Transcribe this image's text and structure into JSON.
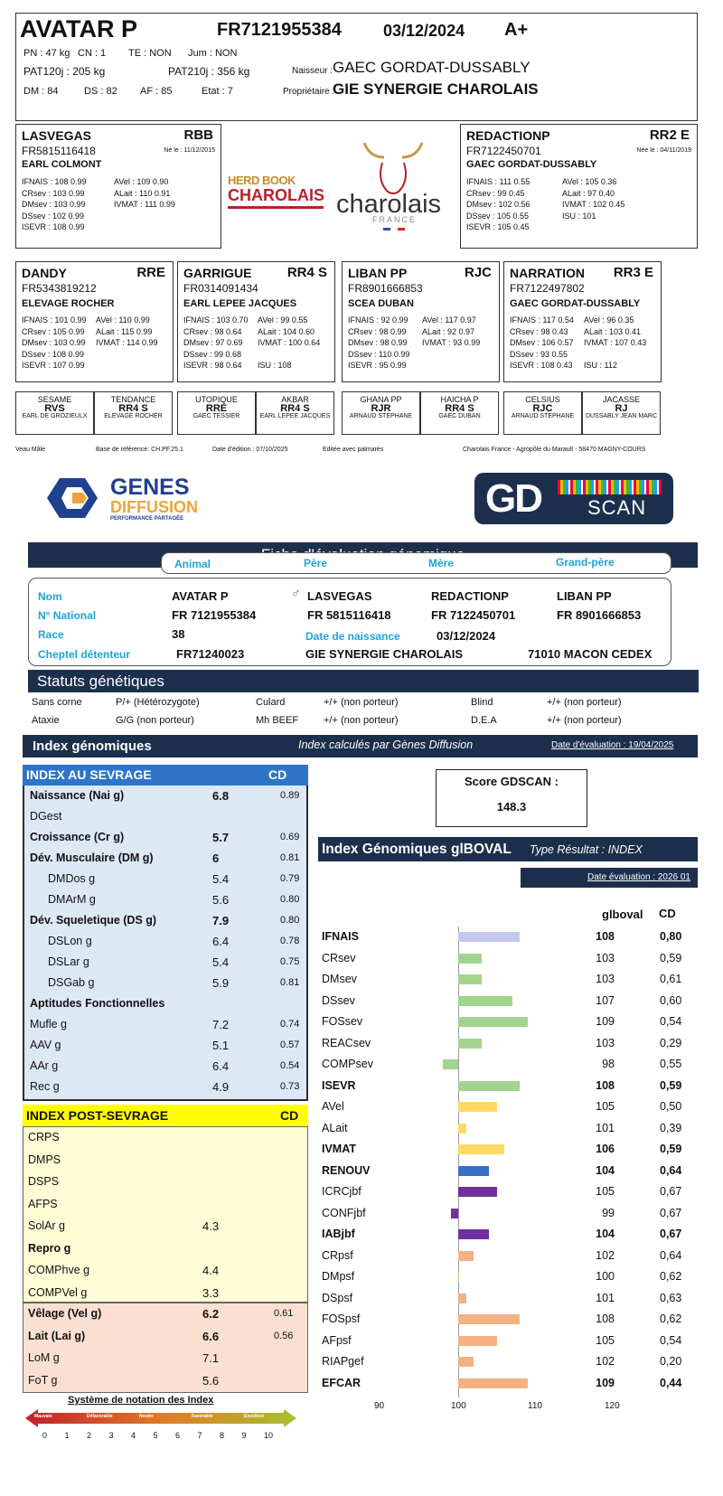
{
  "header": {
    "name": "AVATAR P",
    "number": "FR7121955384",
    "date": "03/12/2024",
    "grade": "A+",
    "pn": "PN : 47 kg",
    "cn": "CN : 1",
    "te": "TE : NON",
    "jum": "Jum : NON",
    "pat120": "PAT120j : 205 kg",
    "pat210": "PAT210j : 356 kg",
    "naisseur_label": "Naisseur :",
    "naisseur": "GAEC GORDAT-DUSSABLY",
    "dm": "DM : 84",
    "ds": "DS : 82",
    "af": "AF : 85",
    "etat": "Etat : 7",
    "proprio_label": "Propriétaire :",
    "proprio": "GIE SYNERGIE CHAROLAIS"
  },
  "sire": {
    "name": "LASVEGAS",
    "code": "RBB",
    "number": "FR5815116418",
    "born": "Né le : 11/12/2015",
    "owner": "EARL COLMONT",
    "left": [
      "IFNAIS : 108 0.99",
      "CRsev : 103 0.99",
      "DMsev : 103 0.99",
      "DSsev : 102 0.99",
      "ISEVR : 108 0.99"
    ],
    "right": [
      "AVel : 109 0.90",
      "ALait : 110 0.91",
      "IVMAT : 111 0.99"
    ]
  },
  "dam": {
    "name": "REDACTIONP",
    "code": "RR2 E",
    "number": "FR7122450701",
    "born": "Née le : 04/11/2019",
    "owner": "GAEC GORDAT-DUSSABLY",
    "left": [
      "IFNAIS : 111 0.55",
      "CRsev : 99 0.45",
      "DMsev : 102 0.56",
      "DSsev : 105 0.55",
      "ISEVR : 105 0.45"
    ],
    "right": [
      "AVel : 105 0.36",
      "ALait : 97 0.40",
      "IVMAT : 102 0.45",
      "",
      "ISU : 101"
    ]
  },
  "logos": {
    "herdbook1": "HERD BOOK",
    "herdbook2": "CHAROLAIS",
    "charolais": "charolais",
    "france": "FRANCE"
  },
  "gparents": [
    {
      "name": "DANDY",
      "code": "RRE",
      "number": "FR5343819212",
      "owner": "ELEVAGE ROCHER",
      "left": [
        "IFNAIS : 101 0.99",
        "CRsev : 105 0.99",
        "DMsev : 103 0.99",
        "DSsev : 108 0.99",
        "ISEVR : 107 0.99"
      ],
      "right": [
        "AVel : 110 0.99",
        "ALait : 115 0.99",
        "IVMAT : 114 0.99",
        "",
        ""
      ]
    },
    {
      "name": "GARRIGUE",
      "code": "RR4 S",
      "number": "FR0314091434",
      "owner": "EARL LEPEE JACQUES",
      "left": [
        "IFNAIS : 103 0.70",
        "CRsev : 98 0.64",
        "DMsev : 97 0.69",
        "DSsev : 99 0.68",
        "ISEVR : 98 0.64"
      ],
      "right": [
        "AVel : 99 0.55",
        "ALait : 104 0.60",
        "IVMAT : 100 0.64",
        "",
        "ISU : 108"
      ]
    },
    {
      "name": "LIBAN PP",
      "code": "RJC",
      "number": "FR8901666853",
      "owner": "SCEA DUBAN",
      "left": [
        "IFNAIS : 92 0.99",
        "CRsev : 98 0.99",
        "DMsev : 98 0.99",
        "DSsev : 110 0.99",
        "ISEVR : 95 0.99"
      ],
      "right": [
        "AVel : 117 0.97",
        "ALait : 92 0.97",
        "IVMAT : 93 0.99",
        "",
        ""
      ]
    },
    {
      "name": "NARRATION",
      "code": "RR3 E",
      "number": "FR7122497802",
      "owner": "GAEC GORDAT-DUSSABLY",
      "left": [
        "IFNAIS : 117 0.54",
        "CRsev : 98 0.43",
        "DMsev : 106 0.57",
        "DSsev : 93 0.55",
        "ISEVR : 108 0.43"
      ],
      "right": [
        "AVel : 96 0.35",
        "ALait : 103 0.41",
        "IVMAT : 107 0.43",
        "",
        "ISU : 112"
      ]
    }
  ],
  "ggparents": [
    {
      "name": "SESAME",
      "code": "RVS",
      "owner": "EARL DE GROZIEULX"
    },
    {
      "name": "TENDANCE",
      "code": "RR4 S",
      "owner": "ELEVAGE ROCHER"
    },
    {
      "name": "UTOPIQUE",
      "code": "RRE",
      "owner": "GAEC TESSIER"
    },
    {
      "name": "AKBAR",
      "code": "RR4 S",
      "owner": "EARL LEPEE JACQUES"
    },
    {
      "name": "GHANA PP",
      "code": "RJR",
      "owner": "ARNAUD STEPHANE"
    },
    {
      "name": "HAICHA P",
      "code": "RR4 S",
      "owner": "GAEC DUBAN"
    },
    {
      "name": "CELSIUS",
      "code": "RJC",
      "owner": "ARNAUD STEPHANE"
    },
    {
      "name": "JACASSE",
      "code": "RJ",
      "owner": "DUSSABLY JEAN MARC"
    }
  ],
  "footer": {
    "type": "Veau Mâle",
    "base": "Base de référence: CH.PF.25.1",
    "edition": "Date d'édition : 07/10/2025",
    "palmares": "Editée avec palmarès",
    "org": "Charolais France - Agropôle du Marault - 58470 MAGNY-COURS"
  },
  "gd": {
    "genes": "GENES",
    "diffusion": "DIFFUSION",
    "tagline": "PERFORMANCE PARTAGÉE",
    "scan_gd": "GD",
    "scan_word": "SCAN",
    "fiche_title": "Fiche d'évaluation génomique",
    "cols": [
      "Animal",
      "Père",
      "Mère",
      "Grand-père"
    ],
    "lbl_nom": "Nom",
    "lbl_nat": "N° National",
    "lbl_race": "Race",
    "lbl_cheptel": "Cheptel détenteur",
    "lbl_naiss": "Date de naissance",
    "animal_nom": "AVATAR P",
    "pere_nom": "LASVEGAS",
    "mere_nom": "REDACTIONP",
    "gp_nom": "LIBAN PP",
    "animal_nat": "FR 7121955384",
    "pere_nat": "FR 5815116418",
    "mere_nat": "FR 7122450701",
    "gp_nat": "FR 8901666853",
    "race": "38",
    "naissance": "03/12/2024",
    "cheptel": "FR71240023",
    "cheptel_nom": "GIE SYNERGIE CHAROLAIS",
    "cheptel_ville": "71010 MACON CEDEX"
  },
  "statuts": {
    "title": "Statuts génétiques",
    "rows": [
      [
        "Sans corne",
        "P/+ (Hétérozygote)",
        "Culard",
        "+/+ (non porteur)",
        "Blind",
        "+/+ (non porteur)"
      ],
      [
        "Ataxie",
        "G/G (non porteur)",
        "Mh BEEF",
        "+/+ (non porteur)",
        "D.E.A",
        "+/+ (non porteur)"
      ]
    ]
  },
  "index": {
    "title": "Index génomiques",
    "calc": "Index calculés par Gènes Diffusion",
    "date_eval": "Date d'évaluation : 19/04/2025",
    "sevrage_title": "INDEX AU SEVRAGE",
    "cd_label": "CD",
    "sevrage": [
      {
        "label": "Naissance (Nai g)",
        "value": "6.8",
        "cd": "0.89",
        "bold": true,
        "indent": 0
      },
      {
        "label": "DGest",
        "value": "",
        "cd": "",
        "bold": false,
        "indent": 0
      },
      {
        "label": "Croissance (Cr g)",
        "value": "5.7",
        "cd": "0.69",
        "bold": true,
        "indent": 0
      },
      {
        "label": "Dév. Musculaire (DM g)",
        "value": "6",
        "cd": "0.81",
        "bold": true,
        "indent": 0
      },
      {
        "label": "DMDos g",
        "value": "5.4",
        "cd": "0.79",
        "bold": false,
        "indent": 1
      },
      {
        "label": "DMArM g",
        "value": "5.6",
        "cd": "0.80",
        "bold": false,
        "indent": 1
      },
      {
        "label": "Dév. Squeletique (DS g)",
        "value": "7.9",
        "cd": "0.80",
        "bold": true,
        "indent": 0
      },
      {
        "label": "DSLon g",
        "value": "6.4",
        "cd": "0.78",
        "bold": false,
        "indent": 1
      },
      {
        "label": "DSLar g",
        "value": "5.4",
        "cd": "0.75",
        "bold": false,
        "indent": 1
      },
      {
        "label": "DSGab g",
        "value": "5.9",
        "cd": "0.81",
        "bold": false,
        "indent": 1
      },
      {
        "label": "Aptitudes Fonctionnelles",
        "value": "",
        "cd": "",
        "bold": true,
        "indent": 0
      },
      {
        "label": "Mufle g",
        "value": "7.2",
        "cd": "0.74",
        "bold": false,
        "indent": 0
      },
      {
        "label": "AAV g",
        "value": "5.1",
        "cd": "0.57",
        "bold": false,
        "indent": 0
      },
      {
        "label": "AAr g",
        "value": "6.4",
        "cd": "0.54",
        "bold": false,
        "indent": 0
      },
      {
        "label": "Rec g",
        "value": "4.9",
        "cd": "0.73",
        "bold": false,
        "indent": 0
      }
    ],
    "post_title": "INDEX POST-SEVRAGE",
    "post": [
      {
        "label": "CRPS",
        "value": "",
        "bold": false
      },
      {
        "label": "DMPS",
        "value": "",
        "bold": false
      },
      {
        "label": "DSPS",
        "value": "",
        "bold": false
      },
      {
        "label": "AFPS",
        "value": "",
        "bold": false
      },
      {
        "label": "SolAr g",
        "value": "4.3",
        "bold": false
      },
      {
        "label": "Repro g",
        "value": "",
        "bold": true
      },
      {
        "label": "COMPhve g",
        "value": "4.4",
        "bold": false
      },
      {
        "label": "COMPVel g",
        "value": "3.3",
        "bold": false
      }
    ],
    "velage": [
      {
        "label": "Vêlage (Vel g)",
        "value": "6.2",
        "cd": "0.61",
        "bold": true
      },
      {
        "label": "Lait (Lai g)",
        "value": "6.6",
        "cd": "0.56",
        "bold": true
      },
      {
        "label": "LoM g",
        "value": "7.1",
        "cd": "",
        "bold": false
      },
      {
        "label": "FoT g",
        "value": "5.6",
        "cd": "",
        "bold": false
      }
    ],
    "notation_title": "Système de notation des Index",
    "notation_words": [
      "Mauvais",
      "Défavorable",
      "Neutre",
      "Favorable",
      "Excellent"
    ],
    "notation_ticks": [
      "0",
      "1",
      "2",
      "3",
      "4",
      "5",
      "6",
      "7",
      "8",
      "9",
      "10"
    ]
  },
  "score": {
    "label": "Score GDSCAN :",
    "value": "148.3"
  },
  "chart_data": {
    "type": "bar",
    "title": "Index Génomiques glBOVAL",
    "subtitle": "Type Résultat : INDEX",
    "date": "Date évaluation : 2026 01",
    "col_value": "glboval",
    "col_cd": "CD",
    "xlim": [
      90,
      120
    ],
    "ticks": [
      "90",
      "100",
      "110",
      "120"
    ],
    "baseline": 100,
    "rows": [
      {
        "label": "IFNAIS",
        "value": 108,
        "cd": "0,80",
        "bold": true,
        "color": "#c5c8f2"
      },
      {
        "label": "CRsev",
        "value": 103,
        "cd": "0,59",
        "bold": false,
        "color": "#a3d48e"
      },
      {
        "label": "DMsev",
        "value": 103,
        "cd": "0,61",
        "bold": false,
        "color": "#a3d48e"
      },
      {
        "label": "DSsev",
        "value": 107,
        "cd": "0,60",
        "bold": false,
        "color": "#a3d48e"
      },
      {
        "label": "FOSsev",
        "value": 109,
        "cd": "0,54",
        "bold": false,
        "color": "#a3d48e"
      },
      {
        "label": "REACsev",
        "value": 103,
        "cd": "0,29",
        "bold": false,
        "color": "#a3d48e"
      },
      {
        "label": "COMPsev",
        "value": 98,
        "cd": "0,55",
        "bold": false,
        "color": "#a3d48e"
      },
      {
        "label": "ISEVR",
        "value": 108,
        "cd": "0,59",
        "bold": true,
        "color": "#a3d48e"
      },
      {
        "label": "AVel",
        "value": 105,
        "cd": "0,50",
        "bold": false,
        "color": "#ffd966"
      },
      {
        "label": "ALait",
        "value": 101,
        "cd": "0,39",
        "bold": false,
        "color": "#ffd966"
      },
      {
        "label": "IVMAT",
        "value": 106,
        "cd": "0,59",
        "bold": true,
        "color": "#ffd966"
      },
      {
        "label": "RENOUV",
        "value": 104,
        "cd": "0,64",
        "bold": true,
        "color": "#3a6fc8"
      },
      {
        "label": "ICRCjbf",
        "value": 105,
        "cd": "0,67",
        "bold": false,
        "color": "#7030a0"
      },
      {
        "label": "CONFjbf",
        "value": 99,
        "cd": "0,67",
        "bold": false,
        "color": "#7030a0"
      },
      {
        "label": "IABjbf",
        "value": 104,
        "cd": "0,67",
        "bold": true,
        "color": "#7030a0"
      },
      {
        "label": "CRpsf",
        "value": 102,
        "cd": "0,64",
        "bold": false,
        "color": "#f4b183"
      },
      {
        "label": "DMpsf",
        "value": 100,
        "cd": "0,62",
        "bold": false,
        "color": "#f4b183"
      },
      {
        "label": "DSpsf",
        "value": 101,
        "cd": "0,63",
        "bold": false,
        "color": "#f4b183"
      },
      {
        "label": "FOSpsf",
        "value": 108,
        "cd": "0,62",
        "bold": false,
        "color": "#f4b183"
      },
      {
        "label": "AFpsf",
        "value": 105,
        "cd": "0,54",
        "bold": false,
        "color": "#f4b183"
      },
      {
        "label": "RIAPgef",
        "value": 102,
        "cd": "0,20",
        "bold": false,
        "color": "#f4b183"
      },
      {
        "label": "EFCAR",
        "value": 109,
        "cd": "0,44",
        "bold": true,
        "color": "#f4b183"
      }
    ]
  }
}
